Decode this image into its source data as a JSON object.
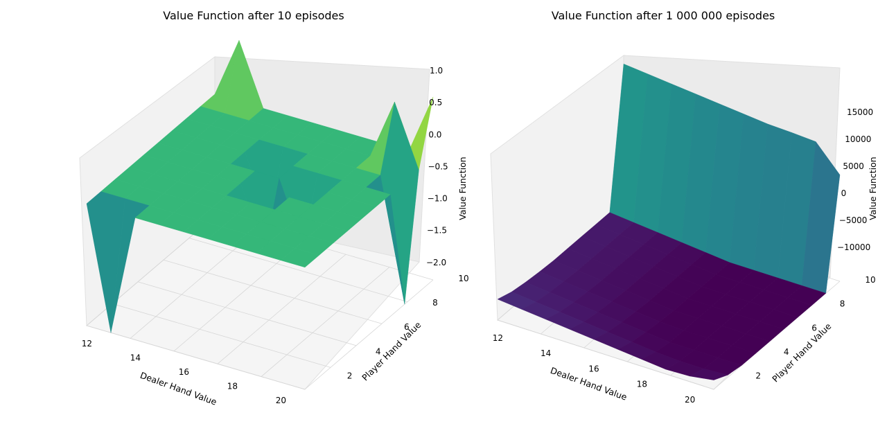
{
  "chart_data": [
    {
      "type": "surface3d",
      "title": "Value Function after 10 episodes",
      "xlabel": "Dealer Hand Value",
      "ylabel": "Player Hand Value",
      "zlabel": "Value Function",
      "x_ticks": [
        "12",
        "14",
        "16",
        "18",
        "20"
      ],
      "y_ticks": [
        "2",
        "4",
        "6",
        "8",
        "10"
      ],
      "z_ticks": [
        "1.0",
        "0.5",
        "0.0",
        "−0.5",
        "−1.0",
        "−1.5",
        "−2.0"
      ],
      "xlim": [
        12,
        21
      ],
      "ylim": [
        1,
        10
      ],
      "zlim": [
        -2,
        1
      ],
      "colormap": "viridis",
      "x": [
        12,
        13,
        14,
        15,
        16,
        17,
        18,
        19,
        20,
        21
      ],
      "y": [
        1,
        2,
        3,
        4,
        5,
        6,
        7,
        8,
        9,
        10
      ],
      "z": [
        [
          0,
          -2,
          0,
          0,
          0,
          0,
          0,
          0,
          0,
          0
        ],
        [
          0,
          0,
          0,
          0,
          0,
          0,
          0,
          0,
          0,
          0
        ],
        [
          0,
          0,
          0,
          0,
          0,
          0,
          0,
          0,
          0,
          0
        ],
        [
          0,
          0,
          0,
          0,
          0,
          0,
          0,
          0,
          0,
          0
        ],
        [
          0,
          0,
          0,
          0,
          0,
          -1,
          0,
          0,
          0,
          0
        ],
        [
          0,
          0,
          0,
          0,
          0,
          0,
          -1,
          0,
          0,
          0
        ],
        [
          0,
          0,
          0,
          0,
          -1,
          0,
          0,
          0,
          0,
          0
        ],
        [
          0,
          0,
          0,
          0,
          0,
          0,
          0,
          0,
          0,
          -2
        ],
        [
          0,
          0,
          0,
          0,
          0,
          0,
          0,
          0,
          1,
          0
        ],
        [
          0,
          1,
          0,
          0,
          0,
          0,
          0,
          0,
          0,
          1
        ]
      ]
    },
    {
      "type": "surface3d",
      "title": "Value Function after 1 000 000 episodes",
      "xlabel": "Dealer Hand Value",
      "ylabel": "Player Hand Value",
      "zlabel": "Value Function",
      "x_ticks": [
        "12",
        "14",
        "16",
        "18",
        "20"
      ],
      "y_ticks": [
        "2",
        "4",
        "6",
        "8",
        "10"
      ],
      "z_ticks": [
        "15000",
        "10000",
        "5000",
        "0",
        "−5000",
        "−10000"
      ],
      "xlim": [
        12,
        21
      ],
      "ylim": [
        1,
        10
      ],
      "zlim": [
        -13000,
        20000
      ],
      "colormap": "viridis",
      "x": [
        12,
        13,
        14,
        15,
        16,
        17,
        18,
        19,
        20,
        21
      ],
      "y": [
        1,
        2,
        3,
        4,
        5,
        6,
        7,
        8,
        9,
        10
      ],
      "z": [
        [
          -8500,
          -9000,
          -9500,
          -10000,
          -10500,
          -11000,
          -11500,
          -12000,
          -11800,
          -11000
        ],
        [
          -9500,
          -10000,
          -10500,
          -11000,
          -11500,
          -12000,
          -12500,
          -12800,
          -12800,
          -12500
        ],
        [
          -10000,
          -10500,
          -11000,
          -11500,
          -12000,
          -12500,
          -13000,
          -13000,
          -13000,
          -13000
        ],
        [
          -10300,
          -10800,
          -11300,
          -11800,
          -12300,
          -12800,
          -13000,
          -13000,
          -13000,
          -13000
        ],
        [
          -10500,
          -11000,
          -11500,
          -12000,
          -12500,
          -13000,
          -13000,
          -13000,
          -13000,
          -13000
        ],
        [
          -10500,
          -11000,
          -11500,
          -12000,
          -12500,
          -13000,
          -13000,
          -13000,
          -13000,
          -13000
        ],
        [
          -10500,
          -11000,
          -11500,
          -12000,
          -12500,
          -13000,
          -13000,
          -13000,
          -13000,
          -13000
        ],
        [
          -10500,
          -11000,
          -11500,
          -12000,
          -12500,
          -13000,
          -13000,
          -13000,
          -13000,
          -13000
        ],
        [
          -10500,
          -11000,
          -11500,
          -12000,
          -12500,
          -13000,
          -13000,
          -13000,
          -13000,
          -13000
        ],
        [
          19000,
          18500,
          18000,
          17500,
          17000,
          16500,
          16000,
          15800,
          15500,
          10000
        ]
      ]
    }
  ]
}
